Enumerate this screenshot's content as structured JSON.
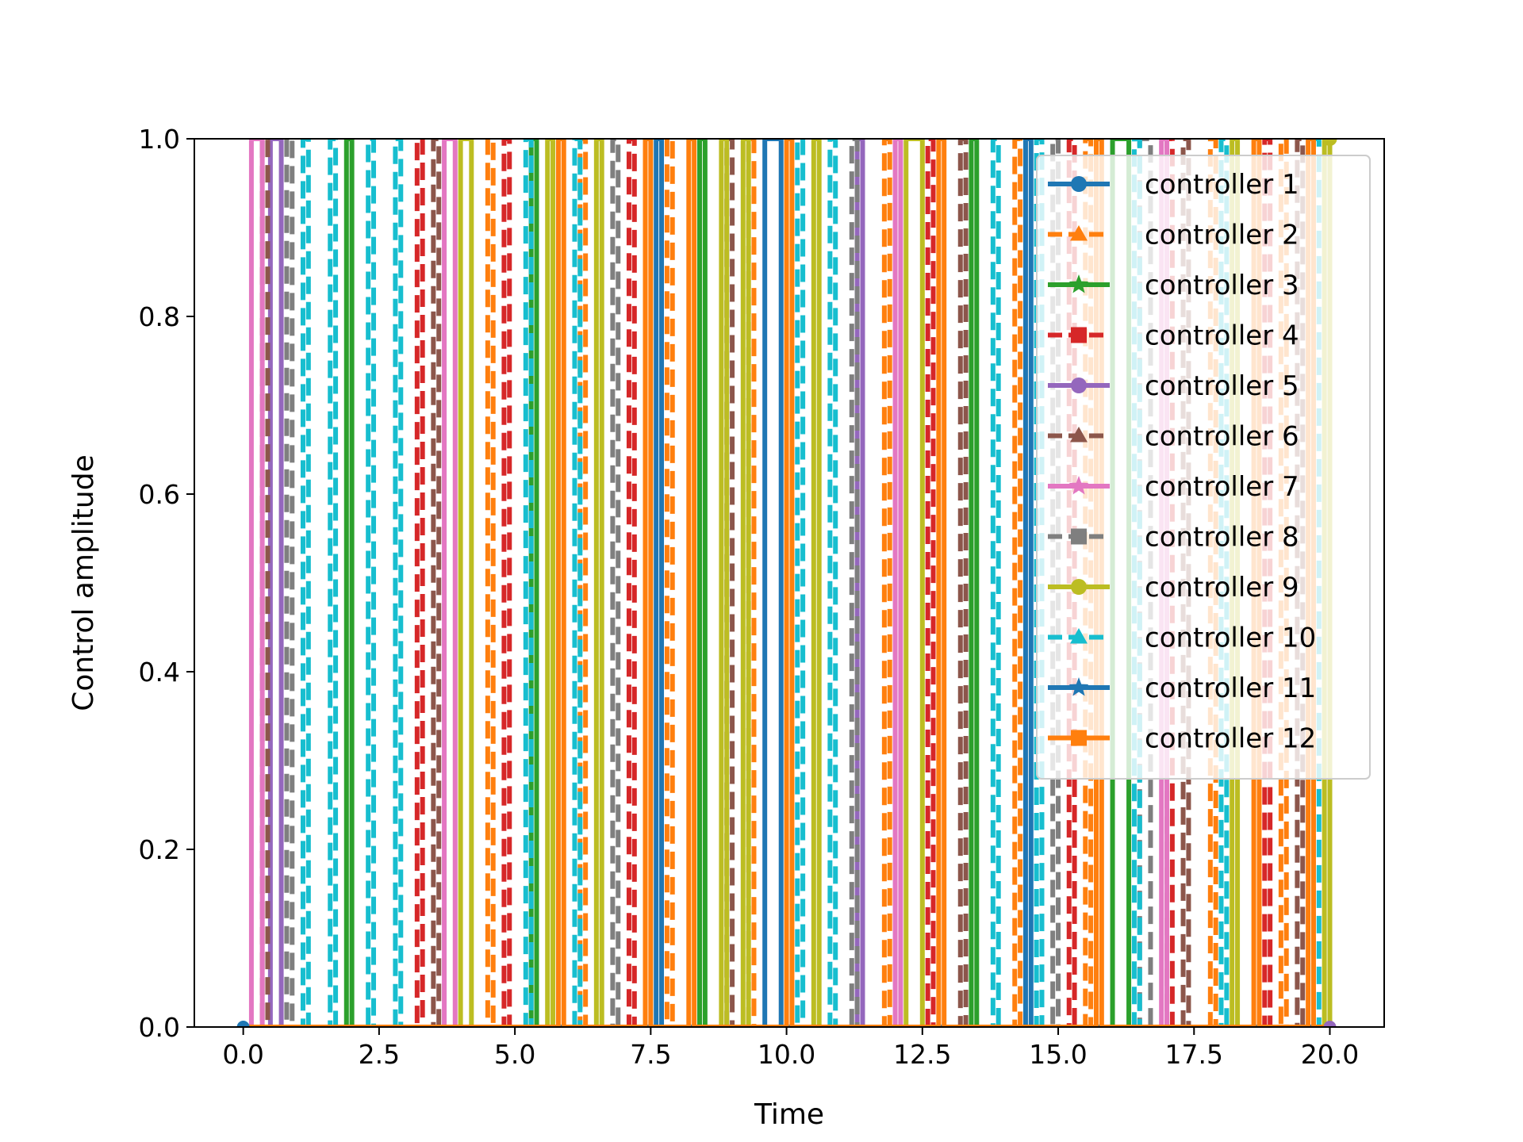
{
  "chart_data": {
    "type": "line",
    "title": "",
    "xlabel": "Time",
    "ylabel": "Control amplitude",
    "xlim": [
      -0.9,
      21.0
    ],
    "ylim": [
      0.0,
      1.0
    ],
    "xticks": [
      0.0,
      2.5,
      5.0,
      7.5,
      10.0,
      12.5,
      15.0,
      17.5,
      20.0
    ],
    "xtick_labels": [
      "0.0",
      "2.5",
      "5.0",
      "7.5",
      "10.0",
      "12.5",
      "15.0",
      "17.5",
      "20.0"
    ],
    "yticks": [
      0.0,
      0.2,
      0.4,
      0.6,
      0.8,
      1.0
    ],
    "ytick_labels": [
      "0.0",
      "0.2",
      "0.4",
      "0.6",
      "0.8",
      "1.0"
    ],
    "grid": false,
    "legend_position": "upper-right",
    "control_values": [
      0,
      1
    ],
    "series": [
      {
        "name": "controller 1",
        "color": "#1f77b4",
        "marker": "circle",
        "linestyle": "solid",
        "on_intervals": [
          [
            9.6,
            9.9
          ]
        ]
      },
      {
        "name": "controller 2",
        "color": "#ff7f0e",
        "marker": "triangle",
        "linestyle": "dashed",
        "on_intervals": [
          [
            4.5,
            4.6
          ],
          [
            6.2,
            6.3
          ],
          [
            7.8,
            7.9
          ],
          [
            9.3,
            9.4
          ],
          [
            11.8,
            11.9
          ],
          [
            14.2,
            14.3
          ],
          [
            15.5,
            15.6
          ],
          [
            17.8,
            17.9
          ],
          [
            19.1,
            19.2
          ]
        ]
      },
      {
        "name": "controller 3",
        "color": "#2ca02c",
        "marker": "star",
        "linestyle": "solid",
        "on_intervals": [
          [
            1.9,
            2.0
          ],
          [
            5.3,
            5.4
          ],
          [
            8.4,
            8.5
          ],
          [
            13.4,
            13.5
          ],
          [
            16.0,
            16.3
          ]
        ]
      },
      {
        "name": "controller 4",
        "color": "#d62728",
        "marker": "square",
        "linestyle": "dashed",
        "on_intervals": [
          [
            3.2,
            3.3
          ],
          [
            4.8,
            4.9
          ],
          [
            7.1,
            7.2
          ],
          [
            12.6,
            12.7
          ],
          [
            15.2,
            15.3
          ],
          [
            17.0,
            17.1
          ],
          [
            18.8,
            18.9
          ]
        ]
      },
      {
        "name": "controller 5",
        "color": "#9467bd",
        "marker": "circle",
        "linestyle": "solid",
        "on_intervals": [
          [
            0.5,
            0.7
          ],
          [
            11.3,
            11.4
          ]
        ]
      },
      {
        "name": "controller 6",
        "color": "#8c564b",
        "marker": "triangle",
        "linestyle": "dashed",
        "on_intervals": [
          [
            0.35,
            0.45
          ],
          [
            3.5,
            3.6
          ],
          [
            8.9,
            9.0
          ],
          [
            13.2,
            13.3
          ],
          [
            17.3,
            17.4
          ],
          [
            19.4,
            19.5
          ]
        ]
      },
      {
        "name": "controller 7",
        "color": "#e377c2",
        "marker": "star",
        "linestyle": "solid",
        "on_intervals": [
          [
            0.15,
            0.35
          ],
          [
            3.7,
            3.9
          ],
          [
            12.0,
            12.1
          ],
          [
            16.9,
            17.0
          ]
        ]
      },
      {
        "name": "controller 8",
        "color": "#7f7f7f",
        "marker": "square",
        "linestyle": "dashed",
        "on_intervals": [
          [
            0.8,
            0.9
          ],
          [
            6.8,
            6.9
          ],
          [
            11.2,
            11.3
          ],
          [
            14.9,
            15.0
          ],
          [
            16.5,
            16.7
          ]
        ]
      },
      {
        "name": "controller 9",
        "color": "#bcbd22",
        "marker": "circle",
        "linestyle": "solid",
        "on_intervals": [
          [
            4.0,
            4.2
          ],
          [
            5.6,
            5.7
          ],
          [
            6.5,
            6.6
          ],
          [
            8.8,
            8.9
          ],
          [
            9.2,
            9.3
          ],
          [
            10.5,
            10.6
          ],
          [
            12.2,
            12.5
          ],
          [
            18.2,
            18.3
          ],
          [
            19.9,
            20.0
          ]
        ]
      },
      {
        "name": "controller 10",
        "color": "#17becf",
        "marker": "triangle",
        "linestyle": "dashed",
        "on_intervals": [
          [
            1.1,
            1.2
          ],
          [
            1.6,
            1.7
          ],
          [
            2.3,
            2.4
          ],
          [
            2.8,
            2.9
          ],
          [
            5.2,
            5.3
          ],
          [
            6.1,
            6.2
          ],
          [
            10.2,
            10.3
          ],
          [
            10.8,
            10.9
          ],
          [
            13.8,
            13.9
          ],
          [
            14.6,
            14.7
          ],
          [
            16.4,
            16.5
          ],
          [
            18.0,
            18.1
          ],
          [
            19.7,
            19.8
          ]
        ]
      },
      {
        "name": "controller 11",
        "color": "#1f77b4",
        "marker": "star",
        "linestyle": "solid",
        "on_intervals": [
          [
            7.6,
            7.7
          ],
          [
            14.4,
            14.5
          ]
        ]
      },
      {
        "name": "controller 12",
        "color": "#ff7f0e",
        "marker": "square",
        "linestyle": "solid",
        "on_intervals": [
          [
            5.8,
            5.9
          ],
          [
            7.4,
            7.5
          ],
          [
            8.2,
            8.3
          ],
          [
            10.0,
            10.1
          ],
          [
            12.8,
            12.9
          ],
          [
            15.7,
            15.8
          ],
          [
            18.6,
            18.7
          ],
          [
            19.6,
            19.7
          ]
        ]
      }
    ]
  }
}
